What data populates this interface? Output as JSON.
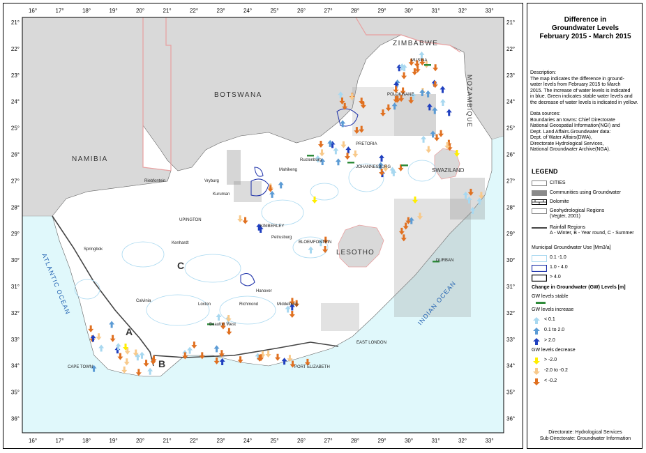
{
  "map": {
    "top_ticks": [
      "16°",
      "17°",
      "18°",
      "19°",
      "20°",
      "21°",
      "22°",
      "23°",
      "24°",
      "25°",
      "26°",
      "27°",
      "28°",
      "29°",
      "30°",
      "31°",
      "32°",
      "33°"
    ],
    "bottom_ticks": [
      "16°",
      "17°",
      "18°",
      "19°",
      "20°",
      "21°",
      "22°",
      "23°",
      "24°",
      "25°",
      "26°",
      "27°",
      "28°",
      "29°",
      "30°",
      "31°",
      "32°",
      "33°"
    ],
    "left_ticks": [
      "21°",
      "22°",
      "23°",
      "24°",
      "25°",
      "26°",
      "27°",
      "28°",
      "29°",
      "30°",
      "31°",
      "32°",
      "33°",
      "34°",
      "35°",
      "36°"
    ],
    "right_ticks": [
      "21°",
      "22°",
      "23°",
      "24°",
      "25°",
      "26°",
      "27°",
      "28°",
      "29°",
      "30°",
      "31°",
      "32°",
      "33°",
      "34°",
      "35°",
      "36°"
    ],
    "countries": {
      "zimbabwe": "ZIMBABWE",
      "botswana": "BOTSWANA",
      "namibia": "NAMIBIA",
      "mozambique": "MOZAMBIQUE",
      "swaziland": "SWAZILAND",
      "lesotho": "LESOTHO"
    },
    "oceans": {
      "atlantic": "ATLANTIC OCEAN",
      "indian": "INDIAN OCEAN"
    },
    "regions": {
      "a": "A",
      "b": "B",
      "c": "C"
    },
    "towns": {
      "musina": "MUSINA",
      "polokwane": "POLOKWANE",
      "pretoria": "PRETORIA",
      "rustenburg": "Rustenburg",
      "johannesburg": "JOHANNESBURG",
      "mahikeng": "Mahikeng",
      "nelspruit": "Nelspruit",
      "riebfontein": "Riebfontein",
      "vryburg": "Vryburg",
      "kuruman": "Kuruman",
      "upington": "UPINGTON",
      "kimberley": "KIMBERLEY",
      "kenhardt": "Kenhardt",
      "bloemfontein": "BLOEMFONTEIN",
      "petrusburg": "Petrusburg",
      "springbok": "Springbok",
      "durban": "DURBAN",
      "hanover": "Hanover",
      "richmond": "Richmond",
      "middelburg": "Middelburg",
      "loxton": "Loxton",
      "calvinia": "Calvinia",
      "beaufort_west": "Beaufort West",
      "east_london": "EAST LONDON",
      "cape_town": "CAPE TOWN",
      "port_elizabeth": "PORT ELIZABETH"
    }
  },
  "panel": {
    "title_lines": [
      "Difference in",
      "Groundwater Levels",
      "February 2015 -  March 2015"
    ],
    "description_lines": [
      "Description:",
      "The map indicates the difference in ground-",
      "water levels from February 2015 to March",
      "2015. The increase of water levels is indicated",
      "in blue. Green indicates stable water levels and",
      "the decrease of water levels is indicated in yellow."
    ],
    "sources_lines": [
      "Data sources:",
      "Boundaries an towns: Chief Directorate",
      "National Geospatial Information(NGI) and",
      "Dept. Land Affairs.Groundwater data:",
      "Dept. of Water Affairs(DWA),",
      "Directorate Hydrological Services,",
      "National Groundwater Archive(NGA)."
    ],
    "legend_title": "LEGEND",
    "legend": {
      "cities": "CITIES",
      "communities": "Communities using Groundwater",
      "dolomite": "Dolomite",
      "geohydro_1": "Geohydrological Regions",
      "geohydro_2": "(Vegter, 2001)",
      "rainfall_1": "Rainfall Regions",
      "rainfall_2": "A - Winter, B - Year round, C - Summer",
      "muni_title": "Municipal Groundwater Use [Mm3/a]",
      "muni_1": "0.1 -1.0",
      "muni_2": "1.0 - 4.0",
      "muni_3": "> 4.0",
      "change_title": "Change in Groundwater (GW) Levels [m]",
      "stable": "GW levels stable",
      "increase_title": "GW levels increase",
      "inc_1": "< 0.1",
      "inc_2": "0.1 to 2.0",
      "inc_3": "> 2.0",
      "decrease_title": "GW levels decrease",
      "dec_1": "> -2.0",
      "dec_2": "-2.0 to -0.2",
      "dec_3": "< -0.2"
    },
    "footer_1": "Directorate: Hydrological Services",
    "footer_2": "Sub-Directorate: Groundwater Information"
  },
  "colors": {
    "ocean": "#e0f8fb",
    "neighbours": "#d9d9d9",
    "land": "#ffffff",
    "inc_light": "#a8d8f0",
    "inc_mid": "#5b9bd5",
    "inc_dark": "#1f3fbf",
    "dec_yellow": "#ffee00",
    "dec_light": "#f8c98a",
    "dec_orange": "#e07020",
    "stable": "#2e8b3a",
    "border_red": "#e8a0a0",
    "water_blue": "#1a2ea8"
  }
}
